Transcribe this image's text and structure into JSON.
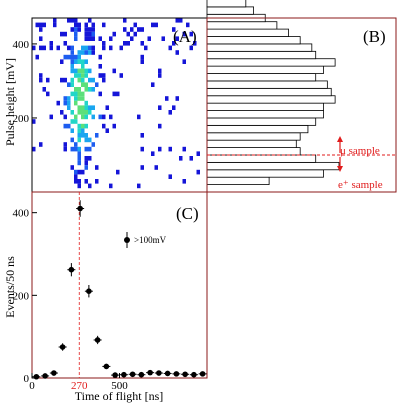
{
  "chart_data": [
    {
      "panel_label": "(A)",
      "type": "heatmap",
      "ylabel": "Pulse height [mV]",
      "yticks": [
        200,
        400
      ],
      "ylim": [
        0,
        470
      ],
      "xlim": [
        0,
        1000
      ],
      "colormap": [
        "#1515d8",
        "#1d5df0",
        "#1aa6f0",
        "#22d6c8",
        "#5ce07a"
      ],
      "description_hidden": true
    },
    {
      "panel_label": "(B)",
      "type": "bar",
      "orientation": "horizontal",
      "bin_width_mV": 20,
      "bins_start_mV": 20,
      "counts": [
        16,
        30,
        34,
        28,
        24,
        23,
        24,
        26,
        28,
        30,
        30,
        33,
        32,
        31,
        28,
        30,
        33,
        28,
        27,
        24,
        21,
        18,
        15,
        12,
        10,
        7,
        5
      ],
      "ylim": [
        0,
        470
      ],
      "annotations": {
        "cut_mV": 100,
        "mu_label": "μ sample",
        "e_label": "e⁺ sample"
      }
    },
    {
      "panel_label": "(C)",
      "type": "scatter",
      "xlabel": "Time of flight [ns]",
      "ylabel": "Events/50 ns",
      "xlim": [
        0,
        1000
      ],
      "ylim": [
        0,
        450
      ],
      "xticks": [
        0,
        500
      ],
      "yticks": [
        0,
        200,
        400
      ],
      "marker_line": {
        "x": 270,
        "label": "270"
      },
      "legend": ">100mV",
      "points": [
        {
          "x": 25,
          "y": 3,
          "err": 3
        },
        {
          "x": 75,
          "y": 5,
          "err": 3
        },
        {
          "x": 125,
          "y": 12,
          "err": 4
        },
        {
          "x": 175,
          "y": 75,
          "err": 9
        },
        {
          "x": 225,
          "y": 262,
          "err": 16
        },
        {
          "x": 275,
          "y": 410,
          "err": 20
        },
        {
          "x": 325,
          "y": 210,
          "err": 15
        },
        {
          "x": 375,
          "y": 92,
          "err": 10
        },
        {
          "x": 425,
          "y": 28,
          "err": 6
        },
        {
          "x": 475,
          "y": 7,
          "err": 3
        },
        {
          "x": 525,
          "y": 8,
          "err": 3
        },
        {
          "x": 575,
          "y": 9,
          "err": 3
        },
        {
          "x": 625,
          "y": 8,
          "err": 3
        },
        {
          "x": 675,
          "y": 13,
          "err": 4
        },
        {
          "x": 725,
          "y": 12,
          "err": 4
        },
        {
          "x": 775,
          "y": 11,
          "err": 4
        },
        {
          "x": 825,
          "y": 10,
          "err": 3
        },
        {
          "x": 875,
          "y": 9,
          "err": 3
        },
        {
          "x": 925,
          "y": 8,
          "err": 3
        },
        {
          "x": 975,
          "y": 10,
          "err": 3
        }
      ]
    }
  ],
  "colors": {
    "frame": "#8b1a1a",
    "accent": "#e01b1b",
    "ink": "#000000"
  }
}
